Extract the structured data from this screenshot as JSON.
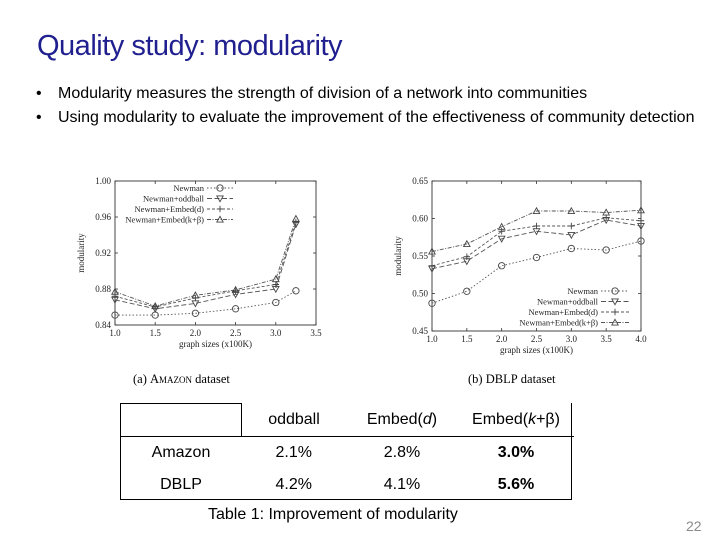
{
  "slide": {
    "title": "Quality study: modularity",
    "bullets": [
      "Modularity measures the strength of division of a network into communities",
      "Using modularity to evaluate the improvement of the effectiveness of community detection"
    ],
    "page_number": "22"
  },
  "table": {
    "caption": "Table 1: Improvement of modularity",
    "headers": [
      "",
      "oddball",
      "Embed(d)",
      "Embed(k+β)"
    ],
    "rows": [
      {
        "label": "Amazon",
        "values": [
          "2.1%",
          "2.8%",
          "3.0%"
        ]
      },
      {
        "label": "DBLP",
        "values": [
          "4.2%",
          "4.1%",
          "5.6%"
        ]
      }
    ]
  },
  "chart_data": [
    {
      "type": "line",
      "caption_prefix": "(a)",
      "caption_name": "Amazon",
      "caption_suffix": "dataset",
      "xlabel": "graph sizes (x100K)",
      "ylabel": "modularity",
      "xlim": [
        1.0,
        3.5
      ],
      "ylim": [
        0.84,
        1.0
      ],
      "xticks": [
        "1.0",
        "1.5",
        "2.0",
        "2.5",
        "3.0",
        "3.5"
      ],
      "yticks": [
        "0.84",
        "0.88",
        "0.92",
        "0.96",
        "1.00"
      ],
      "legend_position": "top-left",
      "x": [
        1.0,
        1.5,
        2.0,
        2.5,
        3.0,
        3.25
      ],
      "series": [
        {
          "name": "Newman",
          "marker": "circle",
          "values": [
            0.851,
            0.851,
            0.853,
            0.858,
            0.865,
            0.878
          ]
        },
        {
          "name": "Newman+oddball",
          "marker": "triangle-down",
          "values": [
            0.868,
            0.858,
            0.864,
            0.874,
            0.88,
            0.952
          ]
        },
        {
          "name": "Newman+Embed(d)",
          "marker": "plus",
          "values": [
            0.872,
            0.86,
            0.87,
            0.878,
            0.885,
            0.954
          ]
        },
        {
          "name": "Newman+Embed(k+β)",
          "marker": "triangle-up",
          "values": [
            0.877,
            0.861,
            0.873,
            0.879,
            0.891,
            0.958
          ]
        }
      ]
    },
    {
      "type": "line",
      "caption_prefix": "(b)",
      "caption_name": "DBLP",
      "caption_suffix": "dataset",
      "xlabel": "graph sizes (x100K)",
      "ylabel": "modularity",
      "xlim": [
        1.0,
        4.0
      ],
      "ylim": [
        0.45,
        0.65
      ],
      "xticks": [
        "1.0",
        "1.5",
        "2.0",
        "2.5",
        "3.0",
        "3.5",
        "4.0"
      ],
      "yticks": [
        "0.45",
        "0.50",
        "0.55",
        "0.60",
        "0.65"
      ],
      "legend_position": "bottom-right",
      "x": [
        1.0,
        1.5,
        2.0,
        2.5,
        3.0,
        3.5,
        4.0
      ],
      "series": [
        {
          "name": "Newman",
          "marker": "circle",
          "values": [
            0.487,
            0.503,
            0.537,
            0.548,
            0.56,
            0.558,
            0.57
          ]
        },
        {
          "name": "Newman+oddball",
          "marker": "triangle-down",
          "values": [
            0.533,
            0.543,
            0.573,
            0.583,
            0.578,
            0.598,
            0.59
          ]
        },
        {
          "name": "Newman+Embed(d)",
          "marker": "plus",
          "values": [
            0.537,
            0.549,
            0.583,
            0.59,
            0.59,
            0.601,
            0.597
          ]
        },
        {
          "name": "Newman+Embed(k+β)",
          "marker": "triangle-up",
          "values": [
            0.556,
            0.566,
            0.589,
            0.61,
            0.61,
            0.608,
            0.611
          ]
        }
      ]
    }
  ]
}
